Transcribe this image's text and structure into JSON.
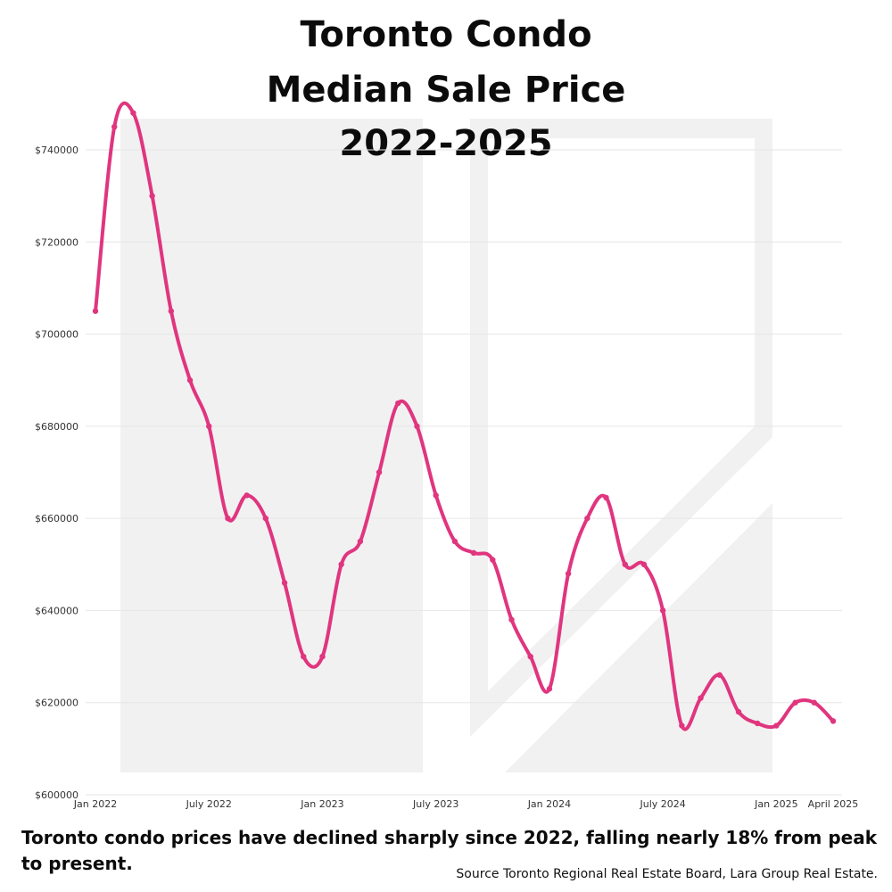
{
  "title_lines": [
    "Toronto Condo",
    "Median Sale Price",
    "2022-2025"
  ],
  "caption": "Toronto condo prices have declined sharply since 2022, falling nearly 18% from peak to present.",
  "source": "Source Toronto Regional Real Estate Board, Lara Group Real Estate.",
  "colors": {
    "line": "#e0357f",
    "grid": "#e6e6e6",
    "watermark": "#f1f1f1"
  },
  "chart_data": {
    "type": "line",
    "title": "Toronto Condo Median Sale Price 2022-2025",
    "xlabel": "",
    "ylabel": "",
    "ylim": [
      600000,
      740000
    ],
    "yticks": [
      600000,
      620000,
      640000,
      660000,
      680000,
      700000,
      720000,
      740000
    ],
    "ytick_labels": [
      "$600000",
      "$620000",
      "$640000",
      "$660000",
      "$680000",
      "$700000",
      "$720000",
      "$740000"
    ],
    "xticks": [
      "2022-01",
      "2022-07",
      "2023-01",
      "2023-07",
      "2024-01",
      "2024-07",
      "2025-01",
      "2025-04"
    ],
    "xtick_labels": [
      "Jan 2022",
      "July 2022",
      "Jan 2023",
      "July 2023",
      "Jan 2024",
      "July 2024",
      "Jan 2025",
      "April 2025"
    ],
    "grid": true,
    "series": [
      {
        "x": [
          "2022-01",
          "2022-02",
          "2022-03",
          "2022-04",
          "2022-05",
          "2022-06",
          "2022-07",
          "2022-08",
          "2022-09",
          "2022-10",
          "2022-11",
          "2022-12",
          "2023-01",
          "2023-02",
          "2023-03",
          "2023-04",
          "2023-05",
          "2023-06",
          "2023-07",
          "2023-08",
          "2023-09",
          "2023-10",
          "2023-11",
          "2023-12",
          "2024-01",
          "2024-02",
          "2024-03",
          "2024-04",
          "2024-05",
          "2024-06",
          "2024-07",
          "2024-08",
          "2024-09",
          "2024-10",
          "2024-11",
          "2024-12",
          "2025-01",
          "2025-02",
          "2025-03",
          "2025-04"
        ],
        "values": [
          705000,
          745000,
          748000,
          730000,
          705000,
          690000,
          680000,
          660000,
          665000,
          660000,
          646000,
          630000,
          630000,
          650000,
          655000,
          670000,
          685000,
          680000,
          665000,
          655000,
          652500,
          651000,
          638000,
          630000,
          623000,
          648000,
          660000,
          664500,
          650000,
          650000,
          640000,
          615000,
          621000,
          626000,
          618000,
          615500,
          615000,
          620000,
          620000,
          616000
        ]
      }
    ]
  }
}
